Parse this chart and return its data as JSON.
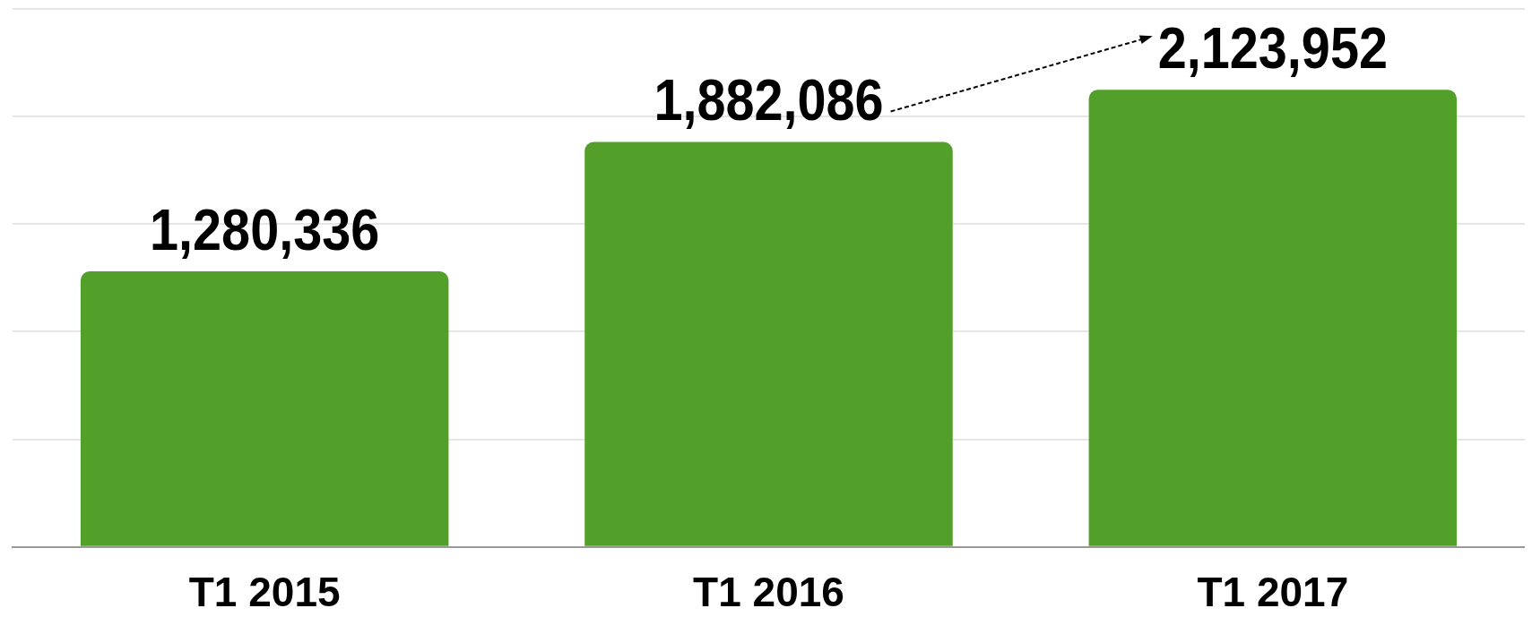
{
  "chart_data": {
    "type": "bar",
    "categories": [
      "T1 2015",
      "T1 2016",
      "T1 2017"
    ],
    "values": [
      1280336,
      1882086,
      2123952
    ],
    "color": "#52a02a",
    "value_labels": [
      "1,280,336",
      "1,882,086",
      "2,123,952"
    ],
    "tick_labels": "x",
    "grid": "y",
    "legend": false
  }
}
